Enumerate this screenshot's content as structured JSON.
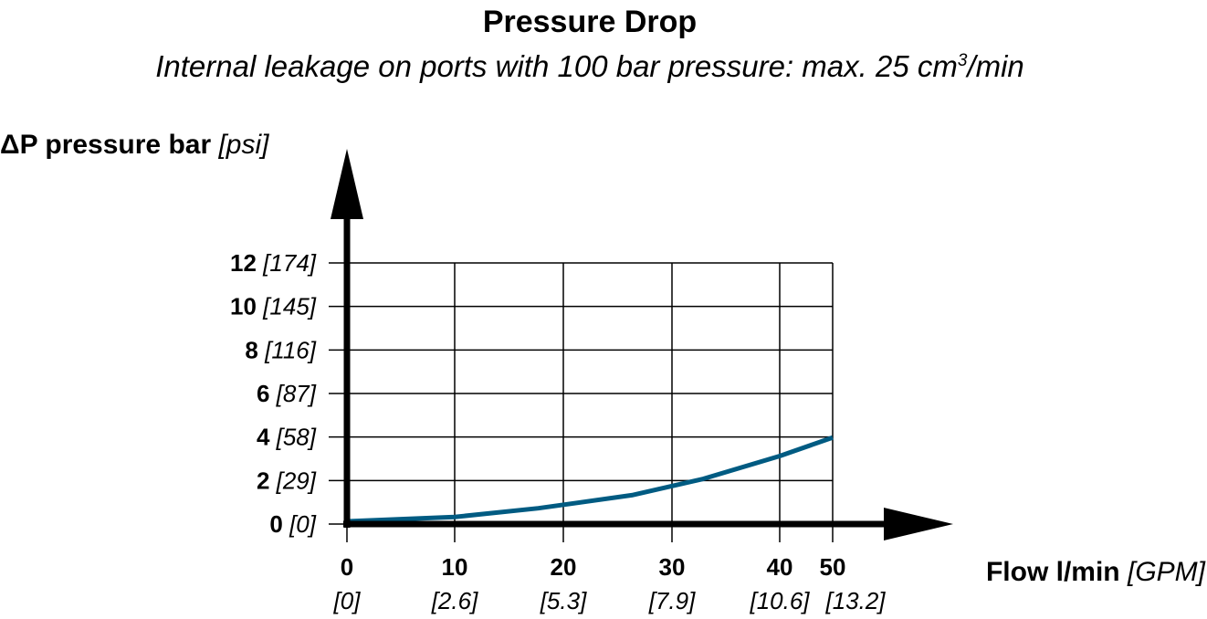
{
  "chart_data": {
    "type": "line",
    "title": "Pressure Drop",
    "subtitle": {
      "text": "Internal leakage on ports with 100 bar pressure: max. 25 cm",
      "sup": "3",
      "tail": "/min"
    },
    "ylabel": {
      "main": "ΔP pressure bar",
      "unit": "[psi]"
    },
    "xlabel": {
      "main": "Flow l/min",
      "unit": "[GPM]"
    },
    "x_ticks": [
      {
        "value": 0,
        "label": "0",
        "alt": "[0]"
      },
      {
        "value": 10,
        "label": "10",
        "alt": "[2.6]"
      },
      {
        "value": 20,
        "label": "20",
        "alt": "[5.3]"
      },
      {
        "value": 30,
        "label": "30",
        "alt": "[7.9]"
      },
      {
        "value": 40,
        "label": "40",
        "alt": "[10.6]"
      },
      {
        "value": 50,
        "label": "50",
        "alt": "[13.2]"
      }
    ],
    "y_ticks": [
      {
        "value": 0,
        "label": "0",
        "alt": "[0]"
      },
      {
        "value": 2,
        "label": "2",
        "alt": "[29]"
      },
      {
        "value": 4,
        "label": "4",
        "alt": "[58]"
      },
      {
        "value": 6,
        "label": "6",
        "alt": "[87]"
      },
      {
        "value": 8,
        "label": "8",
        "alt": "[116]"
      },
      {
        "value": 10,
        "label": "10",
        "alt": "[145]"
      },
      {
        "value": 12,
        "label": "12",
        "alt": "[174]"
      }
    ],
    "xlim": [
      0,
      50
    ],
    "ylim": [
      0,
      12
    ],
    "grid": true,
    "series": [
      {
        "color": "#005b82",
        "x": [
          0,
          10,
          17.7,
          26.3,
          32.9,
          40,
          50
        ],
        "y": [
          0,
          0.2,
          0.6,
          1.2,
          1.95,
          3.0,
          3.85
        ]
      }
    ]
  }
}
